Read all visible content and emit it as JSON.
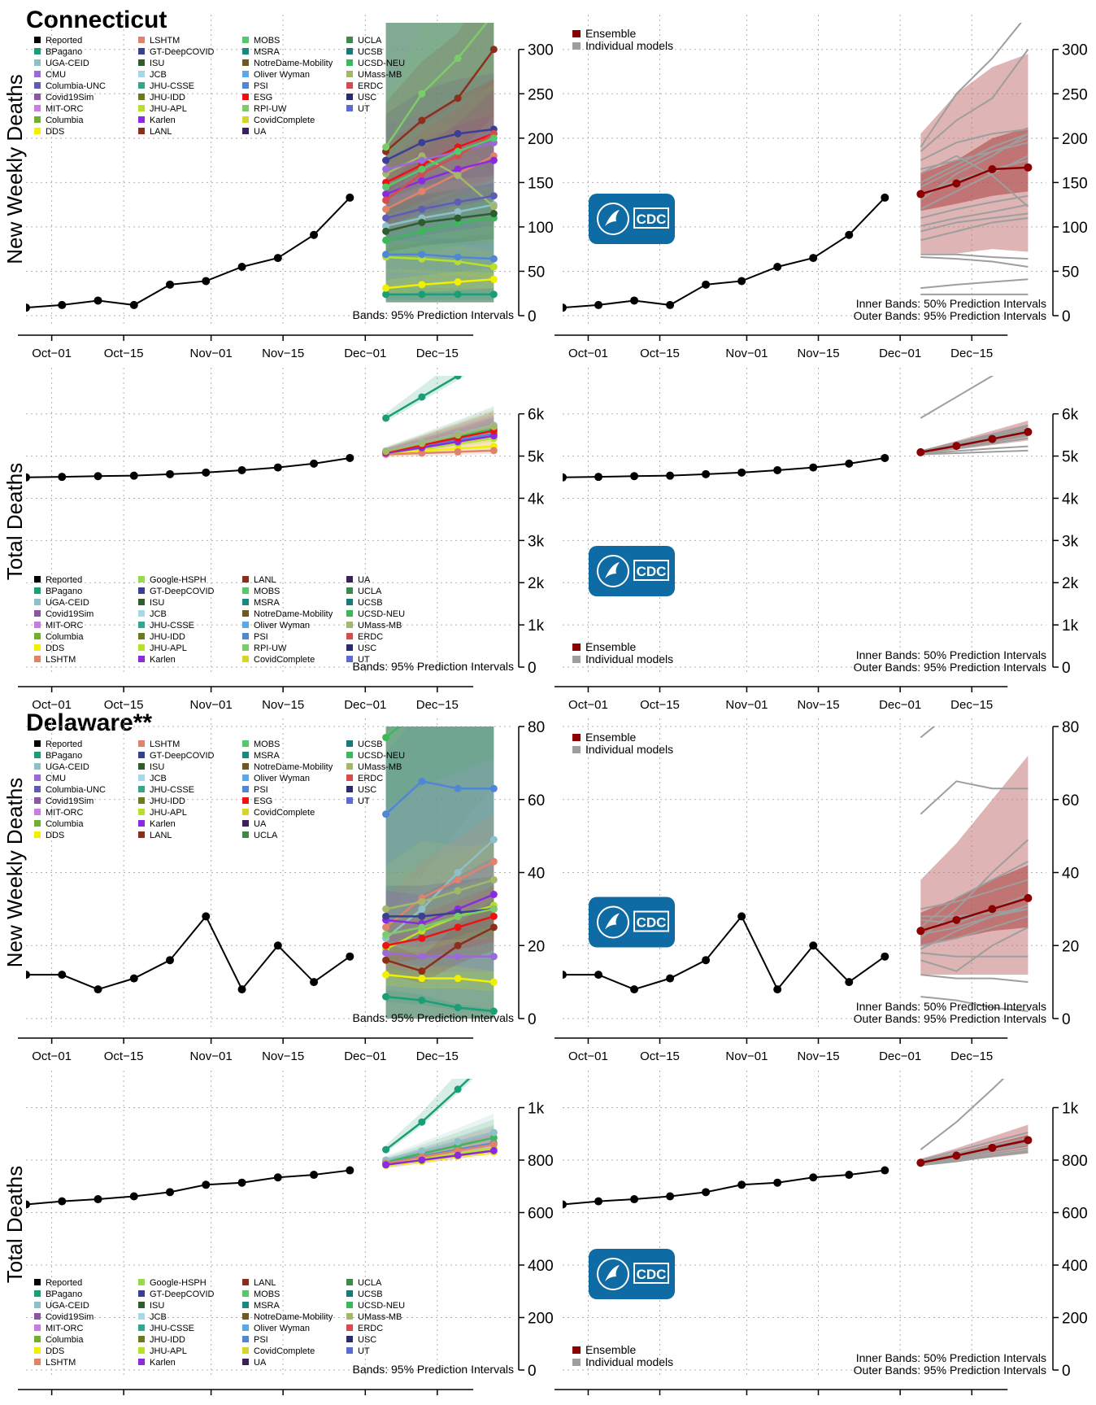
{
  "sections": [
    {
      "state": "Connecticut"
    },
    {
      "state": "Delaware**"
    }
  ],
  "text": {
    "bands95": "Bands: 95% Prediction Intervals",
    "inner": "Inner Bands: 50% Prediction Intervals",
    "outer": "Outer Bands: 95% Prediction Intervals",
    "ensemble": "Ensemble",
    "individual": "Individual models",
    "cdc": "CDC",
    "ylabel_weekly": "New Weekly Deaths",
    "ylabel_total": "Total Deaths"
  },
  "colors": {
    "reported": "#000000",
    "ensemble": "#8b0000",
    "individual": "#9e9e9e",
    "cdc_blue": "#0f6ba3"
  },
  "models": {
    "Reported": "#000000",
    "BPagano": "#1b9e77",
    "UGA-CEID": "#8fbfc9",
    "CMU": "#9b6ad9",
    "Columbia-UNC": "#5e5db3",
    "Covid19Sim": "#8a58a3",
    "MIT-ORC": "#c77ee0",
    "Columbia": "#6fb02e",
    "DDS": "#f0f000",
    "LSHTM": "#e0836a",
    "GT-DeepCOVID": "#3b3f94",
    "ISU": "#2e5e2e",
    "JCB": "#a6d8e8",
    "JHU-CSSE": "#31a88a",
    "JHU-IDD": "#6b7a1f",
    "JHU-APL": "#b8e02a",
    "Karlen": "#8a2be2",
    "LANL": "#8b2f1a",
    "MOBS": "#54c96b",
    "MSRA": "#178a7e",
    "NotreDame-Mobility": "#6e5a1e",
    "Oliver Wyman": "#5aa8e8",
    "PSI": "#4f86d6",
    "ESG": "#ee1111",
    "RPI-UW": "#7ccc6a",
    "CovidComplete": "#d6d628",
    "UA": "#3d1f5c",
    "UCLA": "#3c8a4a",
    "UCSB": "#1a7a7a",
    "UCSD-NEU": "#3cb85a",
    "UMass-MB": "#a3b86a",
    "ERDC": "#d94a4a",
    "USC": "#2a2a6e",
    "UT": "#5a6ad9",
    "Google-HSPH": "#9ad94a"
  },
  "legends": {
    "ct_weekly": [
      "Reported",
      "BPagano",
      "UGA-CEID",
      "CMU",
      "Columbia-UNC",
      "Covid19Sim",
      "MIT-ORC",
      "Columbia",
      "DDS",
      "LSHTM",
      "GT-DeepCOVID",
      "ISU",
      "JCB",
      "JHU-CSSE",
      "JHU-IDD",
      "JHU-APL",
      "Karlen",
      "LANL",
      "MOBS",
      "MSRA",
      "NotreDame-Mobility",
      "Oliver Wyman",
      "PSI",
      "ESG",
      "RPI-UW",
      "CovidComplete",
      "UA",
      "UCLA",
      "UCSB",
      "UCSD-NEU",
      "UMass-MB",
      "ERDC",
      "USC",
      "UT"
    ],
    "ct_total": [
      "Reported",
      "BPagano",
      "UGA-CEID",
      "Covid19Sim",
      "MIT-ORC",
      "Columbia",
      "DDS",
      "LSHTM",
      "Google-HSPH",
      "GT-DeepCOVID",
      "ISU",
      "JCB",
      "JHU-CSSE",
      "JHU-IDD",
      "JHU-APL",
      "Karlen",
      "LANL",
      "MOBS",
      "MSRA",
      "NotreDame-Mobility",
      "Oliver Wyman",
      "PSI",
      "RPI-UW",
      "CovidComplete",
      "UA",
      "UCLA",
      "UCSB",
      "UCSD-NEU",
      "UMass-MB",
      "ERDC",
      "USC",
      "UT"
    ],
    "de_weekly": [
      "Reported",
      "BPagano",
      "UGA-CEID",
      "CMU",
      "Columbia-UNC",
      "Covid19Sim",
      "MIT-ORC",
      "Columbia",
      "DDS",
      "LSHTM",
      "GT-DeepCOVID",
      "ISU",
      "JCB",
      "JHU-CSSE",
      "JHU-IDD",
      "JHU-APL",
      "Karlen",
      "LANL",
      "MOBS",
      "MSRA",
      "NotreDame-Mobility",
      "Oliver Wyman",
      "PSI",
      "ESG",
      "CovidComplete",
      "UA",
      "UCLA",
      "UCSB",
      "UCSD-NEU",
      "UMass-MB",
      "ERDC",
      "USC",
      "UT"
    ],
    "de_total": [
      "Reported",
      "BPagano",
      "UGA-CEID",
      "Covid19Sim",
      "MIT-ORC",
      "Columbia",
      "DDS",
      "LSHTM",
      "Google-HSPH",
      "GT-DeepCOVID",
      "ISU",
      "JCB",
      "JHU-CSSE",
      "JHU-IDD",
      "JHU-APL",
      "Karlen",
      "LANL",
      "MOBS",
      "MSRA",
      "NotreDame-Mobility",
      "Oliver Wyman",
      "PSI",
      "CovidComplete",
      "UA",
      "UCLA",
      "UCSB",
      "UCSD-NEU",
      "UMass-MB",
      "ERDC",
      "USC",
      "UT"
    ]
  },
  "chart_data": [
    {
      "id": "ct_weekly",
      "type": "line",
      "state": "Connecticut",
      "ylabel": "New Weekly Deaths",
      "xticks": [
        "Oct−01",
        "Oct−15",
        "Nov−01",
        "Nov−15",
        "Dec−01",
        "Dec−15"
      ],
      "ylim": [
        0,
        330
      ],
      "yticks": [
        0,
        50,
        100,
        150,
        200,
        250,
        300
      ],
      "ytick_labels": [
        "0",
        "50",
        "100",
        "150",
        "200",
        "250",
        "300"
      ],
      "reported": {
        "dates": [
          "2020-09-26",
          "2020-10-03",
          "2020-10-10",
          "2020-10-17",
          "2020-10-24",
          "2020-10-31",
          "2020-11-07",
          "2020-11-14",
          "2020-11-21",
          "2020-11-28"
        ],
        "values": [
          9,
          12,
          17,
          12,
          35,
          39,
          55,
          65,
          91,
          133
        ]
      },
      "forecast_dates": [
        "2020-12-05",
        "2020-12-12",
        "2020-12-19",
        "2020-12-26"
      ],
      "ensemble": {
        "median": [
          137,
          149,
          165,
          167
        ],
        "lo50": [
          118,
          126,
          135,
          140
        ],
        "hi50": [
          160,
          175,
          200,
          212
        ],
        "lo95": [
          70,
          70,
          75,
          72
        ],
        "hi95": [
          205,
          250,
          280,
          295
        ]
      },
      "model_forecasts": [
        [
          24,
          24,
          24,
          24
        ],
        [
          31,
          35,
          38,
          41
        ],
        [
          66,
          64,
          61,
          55
        ],
        [
          69,
          69,
          66,
          64
        ],
        [
          85,
          95,
          105,
          110
        ],
        [
          101,
          110,
          117,
          125
        ],
        [
          120,
          140,
          160,
          180
        ],
        [
          137,
          152,
          165,
          175
        ],
        [
          150,
          170,
          190,
          205
        ],
        [
          160,
          180,
          158,
          123
        ],
        [
          165,
          175,
          185,
          195
        ],
        [
          175,
          195,
          205,
          210
        ],
        [
          185,
          220,
          245,
          300
        ],
        [
          190,
          250,
          290,
          340
        ],
        [
          130,
          160,
          180,
          205
        ],
        [
          110,
          120,
          128,
          135
        ],
        [
          95,
          105,
          110,
          115
        ],
        [
          145,
          165,
          185,
          200
        ]
      ],
      "group_band": {
        "lo": [
          15,
          15,
          15,
          15
        ],
        "hi": [
          330,
          330,
          330,
          330
        ]
      }
    },
    {
      "id": "ct_total",
      "type": "line",
      "state": "Connecticut",
      "ylabel": "Total Deaths",
      "xticks": [
        "Oct−01",
        "Oct−15",
        "Nov−01",
        "Nov−15",
        "Dec−01",
        "Dec−15"
      ],
      "ylim": [
        0,
        6900
      ],
      "yticks": [
        0,
        1000,
        2000,
        3000,
        4000,
        5000,
        6000
      ],
      "ytick_labels": [
        "0",
        "1k",
        "2k",
        "3k",
        "4k",
        "5k",
        "6k"
      ],
      "reported": {
        "dates": [
          "2020-09-26",
          "2020-10-03",
          "2020-10-10",
          "2020-10-17",
          "2020-10-24",
          "2020-10-31",
          "2020-11-07",
          "2020-11-14",
          "2020-11-21",
          "2020-11-28"
        ],
        "values": [
          4495,
          4507,
          4524,
          4536,
          4571,
          4610,
          4665,
          4730,
          4821,
          4954
        ]
      },
      "forecast_dates": [
        "2020-12-05",
        "2020-12-12",
        "2020-12-19",
        "2020-12-26"
      ],
      "ensemble": {
        "median": [
          5091,
          5240,
          5405,
          5572
        ],
        "lo50": [
          5080,
          5200,
          5340,
          5480
        ],
        "hi50": [
          5110,
          5290,
          5480,
          5670
        ],
        "lo95": [
          5060,
          5150,
          5260,
          5370
        ],
        "hi95": [
          5130,
          5360,
          5600,
          5840
        ]
      },
      "model_forecasts": [
        [
          5900,
          6400,
          6900,
          7400
        ],
        [
          5050,
          5120,
          5180,
          5230
        ],
        [
          5060,
          5180,
          5300,
          5420
        ],
        [
          5080,
          5230,
          5380,
          5530
        ],
        [
          5100,
          5280,
          5460,
          5640
        ],
        [
          5120,
          5320,
          5520,
          5730
        ],
        [
          5040,
          5070,
          5100,
          5130
        ],
        [
          5070,
          5200,
          5340,
          5480
        ],
        [
          5090,
          5260,
          5430,
          5600
        ],
        [
          5110,
          5300,
          5500,
          5700
        ]
      ],
      "group_band": {
        "lo": [
          5000,
          5000,
          5000,
          5000
        ],
        "hi": [
          5200,
          5800,
          6400,
          6900
        ]
      }
    },
    {
      "id": "de_weekly",
      "type": "line",
      "state": "Delaware**",
      "ylabel": "New Weekly Deaths",
      "xticks": [
        "Oct−01",
        "Oct−15",
        "Nov−01",
        "Nov−15",
        "Dec−01",
        "Dec−15"
      ],
      "ylim": [
        0,
        80
      ],
      "yticks": [
        0,
        20,
        40,
        60,
        80
      ],
      "ytick_labels": [
        "0",
        "20",
        "40",
        "60",
        "80"
      ],
      "reported": {
        "dates": [
          "2020-09-26",
          "2020-10-03",
          "2020-10-10",
          "2020-10-17",
          "2020-10-24",
          "2020-10-31",
          "2020-11-07",
          "2020-11-14",
          "2020-11-21",
          "2020-11-28"
        ],
        "values": [
          12,
          12,
          8,
          11,
          16,
          28,
          8,
          20,
          10,
          17
        ]
      },
      "forecast_dates": [
        "2020-12-05",
        "2020-12-12",
        "2020-12-19",
        "2020-12-26"
      ],
      "ensemble": {
        "median": [
          24,
          27,
          30,
          33
        ],
        "lo50": [
          20,
          22,
          24,
          25
        ],
        "hi50": [
          29,
          33,
          38,
          42
        ],
        "lo95": [
          12,
          12,
          12,
          12
        ],
        "hi95": [
          38,
          48,
          60,
          72
        ]
      },
      "model_forecasts": [
        [
          6,
          5,
          3,
          2
        ],
        [
          12,
          11,
          11,
          10
        ],
        [
          19,
          24,
          28,
          31
        ],
        [
          56,
          65,
          63,
          63
        ],
        [
          77,
          85,
          90,
          95
        ],
        [
          22,
          30,
          40,
          49
        ],
        [
          25,
          33,
          38,
          43
        ],
        [
          27,
          26,
          30,
          34
        ],
        [
          20,
          22,
          25,
          28
        ],
        [
          30,
          32,
          35,
          38
        ],
        [
          18,
          17,
          17,
          17
        ],
        [
          28,
          28,
          29,
          30
        ],
        [
          16,
          13,
          20,
          25
        ],
        [
          23,
          25,
          28,
          30
        ]
      ],
      "group_band": {
        "lo": [
          0,
          0,
          0,
          0
        ],
        "hi": [
          80,
          80,
          80,
          80
        ]
      }
    },
    {
      "id": "de_total",
      "type": "line",
      "state": "Delaware**",
      "ylabel": "Total Deaths",
      "xticks": [
        "Oct−01",
        "Oct−15",
        "Nov−01",
        "Nov−15",
        "Dec−01",
        "Dec−15"
      ],
      "ylim": [
        0,
        1110
      ],
      "yticks": [
        0,
        200,
        400,
        600,
        800,
        1000
      ],
      "ytick_labels": [
        "0",
        "200",
        "400",
        "600",
        "800",
        "1k"
      ],
      "reported": {
        "dates": [
          "2020-09-26",
          "2020-10-03",
          "2020-10-10",
          "2020-10-17",
          "2020-10-24",
          "2020-10-31",
          "2020-11-07",
          "2020-11-14",
          "2020-11-21",
          "2020-11-28"
        ],
        "values": [
          631,
          643,
          651,
          662,
          678,
          706,
          714,
          734,
          744,
          761
        ]
      },
      "forecast_dates": [
        "2020-12-05",
        "2020-12-12",
        "2020-12-19",
        "2020-12-26"
      ],
      "ensemble": {
        "median": [
          790,
          817,
          847,
          876
        ],
        "lo50": [
          785,
          808,
          830,
          852
        ],
        "hi50": [
          796,
          828,
          862,
          896
        ],
        "lo95": [
          780,
          795,
          810,
          825
        ],
        "hi95": [
          805,
          845,
          890,
          935
        ]
      },
      "model_forecasts": [
        [
          840,
          945,
          1070,
          1200
        ],
        [
          780,
          795,
          815,
          830
        ],
        [
          785,
          805,
          825,
          845
        ],
        [
          790,
          815,
          840,
          865
        ],
        [
          795,
          825,
          855,
          885
        ],
        [
          800,
          835,
          870,
          905
        ],
        [
          788,
          812,
          836,
          860
        ],
        [
          782,
          800,
          818,
          836
        ]
      ],
      "group_band": {
        "lo": [
          765,
          765,
          765,
          765
        ],
        "hi": [
          860,
          960,
          1060,
          1110
        ]
      }
    }
  ]
}
